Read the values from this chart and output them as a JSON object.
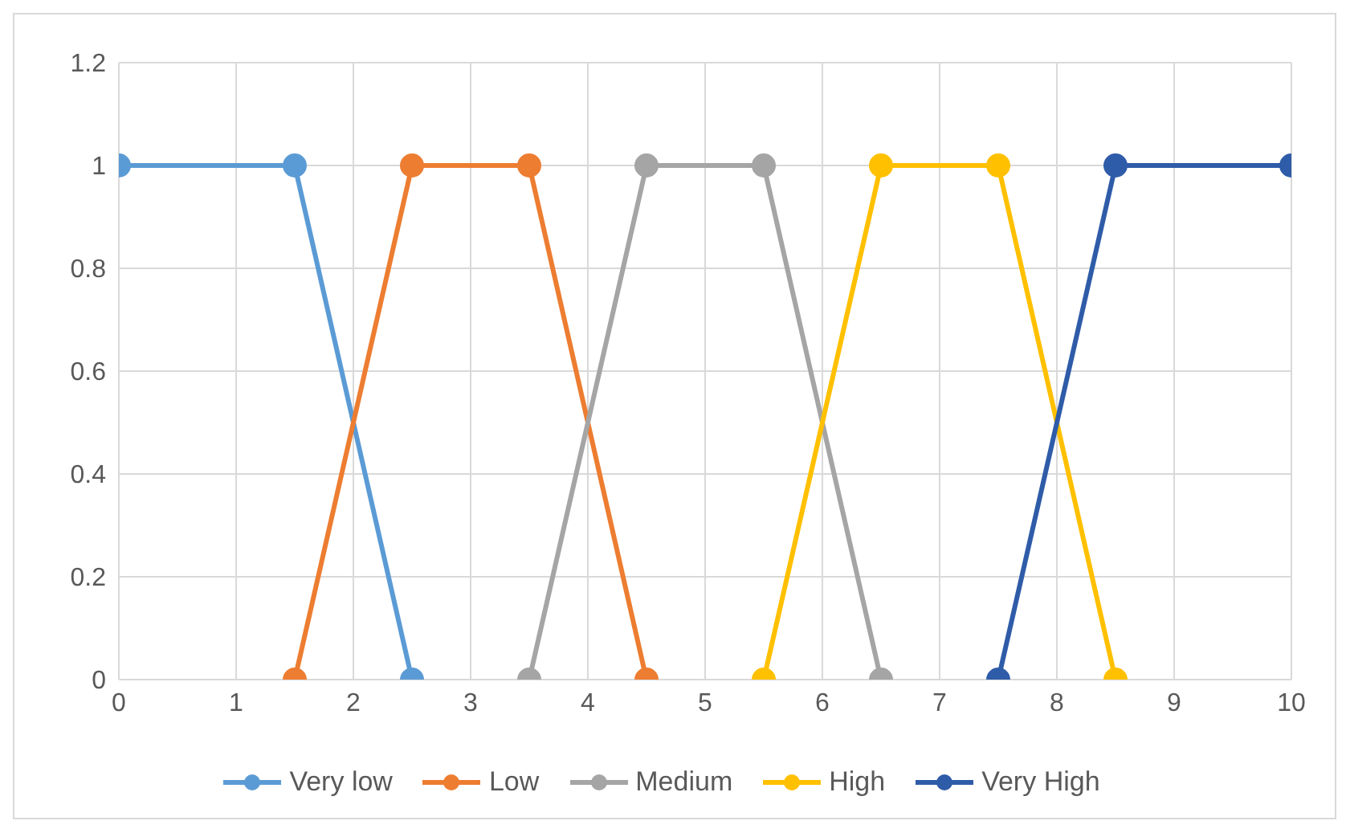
{
  "chart_data": {
    "type": "line",
    "xlim": [
      0,
      10
    ],
    "xticks": [
      0,
      1,
      2,
      3,
      4,
      5,
      6,
      7,
      8,
      9,
      10
    ],
    "ylim": [
      0,
      1.2
    ],
    "yticks": [
      0,
      0.2,
      0.4,
      0.6,
      0.8,
      1,
      1.2
    ],
    "grid": true,
    "legend": "bottom",
    "marker": "circle",
    "line_style": "solid",
    "series": [
      {
        "name": "Very low",
        "color": "#5b9bd5",
        "x": [
          0,
          1.5,
          2.5
        ],
        "values": [
          1,
          1,
          0
        ]
      },
      {
        "name": "Low",
        "color": "#ed7d31",
        "x": [
          1.5,
          2.5,
          3.5,
          4.5
        ],
        "values": [
          0,
          1,
          1,
          0
        ]
      },
      {
        "name": "Medium",
        "color": "#a5a5a5",
        "x": [
          3.5,
          4.5,
          5.5,
          6.5
        ],
        "values": [
          0,
          1,
          1,
          0
        ]
      },
      {
        "name": "High",
        "color": "#ffc000",
        "x": [
          5.5,
          6.5,
          7.5,
          8.5
        ],
        "values": [
          0,
          1,
          1,
          0
        ]
      },
      {
        "name": "Very High",
        "color": "#2f5ca8",
        "x": [
          7.5,
          8.5,
          10
        ],
        "values": [
          0,
          1,
          1
        ]
      }
    ]
  }
}
